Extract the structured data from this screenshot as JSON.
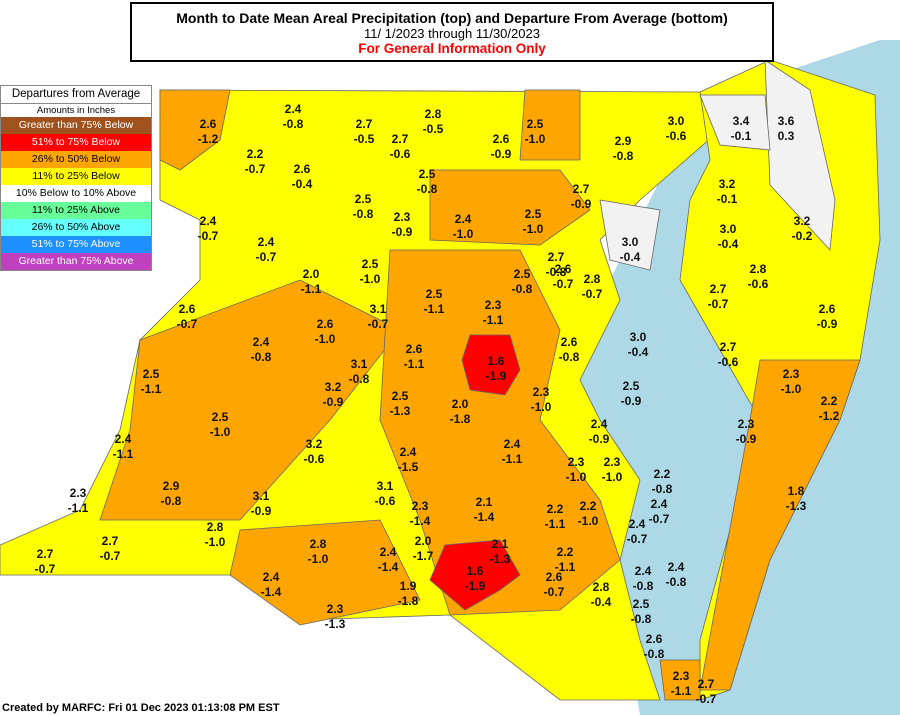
{
  "header": {
    "title": "Month to Date Mean Areal Precipitation (top) and Departure From Average (bottom)",
    "dates": "11/ 1/2023 through 11/30/2023",
    "notice": "For General Information Only"
  },
  "legend": {
    "title": "Departures from Average",
    "subtitle": "Amounts in Inches",
    "items": [
      {
        "label": "Greater than 75% Below",
        "color": "#a0521e"
      },
      {
        "label": "51% to 75% Below",
        "color": "#ff0000"
      },
      {
        "label": "26% to 50% Below",
        "color": "#ffa500"
      },
      {
        "label": "11% to 25% Below",
        "color": "#ffff00"
      },
      {
        "label": "10% Below to 10% Above",
        "color": "#ffffff"
      },
      {
        "label": "11% to 25% Above",
        "color": "#66ff99"
      },
      {
        "label": "26% to 50% Above",
        "color": "#66ffff"
      },
      {
        "label": "51% to 75% Above",
        "color": "#1e90ff"
      },
      {
        "label": "Greater than 75% Above",
        "color": "#c040c0"
      }
    ]
  },
  "regions": [
    {
      "precip": "2.6",
      "departure": "-1.2"
    },
    {
      "precip": "2.4",
      "departure": "-0.8"
    },
    {
      "precip": "2.7",
      "departure": "-0.5"
    },
    {
      "precip": "2.8",
      "departure": "-0.5"
    },
    {
      "precip": "2.7",
      "departure": "-0.6"
    },
    {
      "precip": "2.2",
      "departure": "-0.7"
    },
    {
      "precip": "2.6",
      "departure": "-0.4"
    },
    {
      "precip": "2.5",
      "departure": "-0.8"
    },
    {
      "precip": "2.6",
      "departure": "-0.9"
    },
    {
      "precip": "2.5",
      "departure": "-1.0"
    },
    {
      "precip": "3.0",
      "departure": "-0.6"
    },
    {
      "precip": "3.4",
      "departure": "-0.1"
    },
    {
      "precip": "3.6",
      "departure": "0.3"
    },
    {
      "precip": "2.9",
      "departure": "-0.8"
    },
    {
      "precip": "3.2",
      "departure": "-0.1"
    },
    {
      "precip": "3.2",
      "departure": "-0.2"
    },
    {
      "precip": "2.7",
      "departure": "-0.9"
    },
    {
      "precip": "2.5",
      "departure": "-0.8"
    },
    {
      "precip": "2.3",
      "departure": "-0.9"
    },
    {
      "precip": "2.4",
      "departure": "-1.0"
    },
    {
      "precip": "2.5",
      "departure": "-1.0"
    },
    {
      "precip": "3.0",
      "departure": "-0.4"
    },
    {
      "precip": "3.0",
      "departure": "-0.4"
    },
    {
      "precip": "2.4",
      "departure": "-0.7"
    },
    {
      "precip": "2.4",
      "departure": "-0.7"
    },
    {
      "precip": "2.5",
      "departure": "-1.0"
    },
    {
      "precip": "2.0",
      "departure": "-1.1"
    },
    {
      "precip": "2.5",
      "departure": "-0.8"
    },
    {
      "precip": "2.7",
      "departure": "-0.8"
    },
    {
      "precip": "2.6",
      "departure": "-0.7"
    },
    {
      "precip": "2.8",
      "departure": "-0.7"
    },
    {
      "precip": "2.8",
      "departure": "-0.6"
    },
    {
      "precip": "2.7",
      "departure": "-0.7"
    },
    {
      "precip": "2.6",
      "departure": "-0.9"
    },
    {
      "precip": "2.6",
      "departure": "-0.7"
    },
    {
      "precip": "3.1",
      "departure": "-0.7"
    },
    {
      "precip": "2.5",
      "departure": "-1.1"
    },
    {
      "precip": "2.3",
      "departure": "-1.1"
    },
    {
      "precip": "2.6",
      "departure": "-1.0"
    },
    {
      "precip": "2.4",
      "departure": "-0.8"
    },
    {
      "precip": "2.6",
      "departure": "-0.8"
    },
    {
      "precip": "3.0",
      "departure": "-0.4"
    },
    {
      "precip": "2.7",
      "departure": "-0.6"
    },
    {
      "precip": "2.6",
      "departure": "-1.1"
    },
    {
      "precip": "1.6",
      "departure": "-1.9"
    },
    {
      "precip": "3.1",
      "departure": "-0.8"
    },
    {
      "precip": "3.2",
      "departure": "-0.9"
    },
    {
      "precip": "2.5",
      "departure": "-1.1"
    },
    {
      "precip": "2.3",
      "departure": "-1.0"
    },
    {
      "precip": "2.2",
      "departure": "-1.2"
    },
    {
      "precip": "2.5",
      "departure": "-0.9"
    },
    {
      "precip": "2.3",
      "departure": "-1.0"
    },
    {
      "precip": "2.5",
      "departure": "-1.3"
    },
    {
      "precip": "2.0",
      "departure": "-1.8"
    },
    {
      "precip": "2.5",
      "departure": "-1.0"
    },
    {
      "precip": "2.4",
      "departure": "-0.9"
    },
    {
      "precip": "2.3",
      "departure": "-0.9"
    },
    {
      "precip": "2.4",
      "departure": "-1.1"
    },
    {
      "precip": "3.2",
      "departure": "-0.6"
    },
    {
      "precip": "2.4",
      "departure": "-1.5"
    },
    {
      "precip": "2.4",
      "departure": "-1.1"
    },
    {
      "precip": "2.3",
      "departure": "-1.0"
    },
    {
      "precip": "2.3",
      "departure": "-1.0"
    },
    {
      "precip": "2.2",
      "departure": "-0.8"
    },
    {
      "precip": "1.8",
      "departure": "-1.3"
    },
    {
      "precip": "2.9",
      "departure": "-0.8"
    },
    {
      "precip": "3.1",
      "departure": "-0.6"
    },
    {
      "precip": "2.3",
      "departure": "-1.1"
    },
    {
      "precip": "3.1",
      "departure": "-0.9"
    },
    {
      "precip": "2.3",
      "departure": "-1.4"
    },
    {
      "precip": "2.1",
      "departure": "-1.4"
    },
    {
      "precip": "2.2",
      "departure": "-1.1"
    },
    {
      "precip": "2.2",
      "departure": "-1.0"
    },
    {
      "precip": "2.4",
      "departure": "-0.7"
    },
    {
      "precip": "2.4",
      "departure": "-0.7"
    },
    {
      "precip": "2.8",
      "departure": "-1.0"
    },
    {
      "precip": "2.8",
      "departure": "-1.0"
    },
    {
      "precip": "2.0",
      "departure": "-1.7"
    },
    {
      "precip": "2.1",
      "departure": "-1.3"
    },
    {
      "precip": "2.2",
      "departure": "-1.1"
    },
    {
      "precip": "2.4",
      "departure": "-1.4"
    },
    {
      "precip": "2.4",
      "departure": "-0.8"
    },
    {
      "precip": "2.4",
      "departure": "-0.8"
    },
    {
      "precip": "2.7",
      "departure": "-0.7"
    },
    {
      "precip": "2.7",
      "departure": "-0.7"
    },
    {
      "precip": "1.6",
      "departure": "-1.9"
    },
    {
      "precip": "2.4",
      "departure": "-1.4"
    },
    {
      "precip": "1.9",
      "departure": "-1.8"
    },
    {
      "precip": "2.6",
      "departure": "-0.7"
    },
    {
      "precip": "2.8",
      "departure": "-0.4"
    },
    {
      "precip": "2.5",
      "departure": "-0.8"
    },
    {
      "precip": "2.3",
      "departure": "-1.3"
    },
    {
      "precip": "2.6",
      "departure": "-0.8"
    },
    {
      "precip": "2.3",
      "departure": "-1.1"
    },
    {
      "precip": "2.7",
      "departure": "-0.7"
    }
  ],
  "footer": "Created by MARFC: Fri 01 Dec 2023 01:13:08 PM EST"
}
